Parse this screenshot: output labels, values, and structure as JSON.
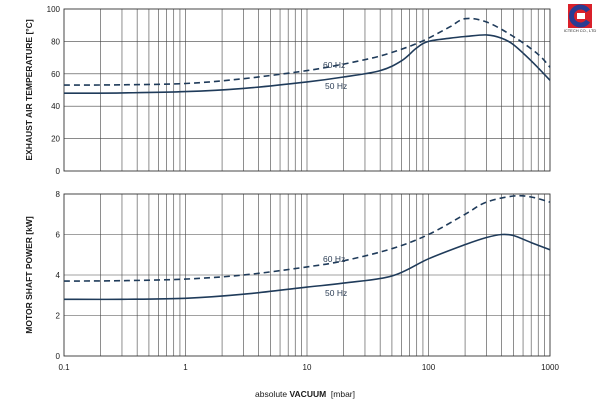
{
  "company": {
    "logo_text": "ICTECH CO., LTD",
    "colors": {
      "red": "#d9202a",
      "blue": "#2a3c92"
    }
  },
  "colors": {
    "line": "#1f3b5a",
    "grid": "#444444"
  },
  "chart_data": [
    {
      "type": "line",
      "id": "temperature",
      "title": "",
      "xlabel": "",
      "ylabel": "EXHAUST AIR TEMPERATURE [°C]",
      "x_scale": "log",
      "xlim": [
        0.1,
        1000
      ],
      "ylim": [
        0,
        100
      ],
      "yticks": [
        "0",
        "20",
        "40",
        "60",
        "80",
        "100"
      ],
      "xtick_labels": [],
      "grid": true,
      "series": [
        {
          "name": "60 Hz",
          "style": "dashed",
          "x": [
            0.1,
            0.3,
            1,
            3,
            10,
            20,
            40,
            70,
            100,
            150,
            200,
            300,
            500,
            800,
            1000
          ],
          "y": [
            53,
            53.2,
            54,
            57,
            62,
            66,
            71,
            77,
            82,
            89,
            94,
            92,
            83,
            72,
            64
          ]
        },
        {
          "name": "50 Hz",
          "style": "solid",
          "x": [
            0.1,
            0.3,
            1,
            3,
            10,
            20,
            40,
            60,
            80,
            100,
            150,
            200,
            300,
            400,
            500,
            700,
            1000
          ],
          "y": [
            48,
            48.2,
            49,
            51,
            55,
            58,
            62,
            68,
            76,
            80,
            82,
            83,
            84,
            82,
            78,
            68,
            56
          ]
        }
      ]
    },
    {
      "type": "line",
      "id": "power",
      "title": "",
      "xlabel": "absolute VACUUM [mbar]",
      "xlabel_parts": {
        "prefix": "absolute ",
        "bold": "VACUUM",
        "suffix": "  [mbar]"
      },
      "ylabel": "MOTOR SHAFT POWER [kW]",
      "x_scale": "log",
      "xlim": [
        0.1,
        1000
      ],
      "ylim": [
        0,
        8
      ],
      "yticks": [
        "0",
        "2",
        "4",
        "6",
        "8"
      ],
      "xtick_labels": [
        "0.1",
        "1",
        "10",
        "100",
        "1000"
      ],
      "grid": true,
      "series": [
        {
          "name": "60 Hz",
          "style": "dashed",
          "x": [
            0.1,
            0.3,
            1,
            3,
            10,
            20,
            50,
            100,
            200,
            300,
            500,
            700,
            1000
          ],
          "y": [
            3.7,
            3.72,
            3.8,
            4.0,
            4.4,
            4.7,
            5.3,
            6.0,
            7.0,
            7.6,
            7.9,
            7.85,
            7.6
          ]
        },
        {
          "name": "50 Hz",
          "style": "solid",
          "x": [
            0.1,
            0.3,
            1,
            3,
            10,
            20,
            50,
            100,
            200,
            300,
            400,
            500,
            700,
            1000
          ],
          "y": [
            2.8,
            2.8,
            2.85,
            3.05,
            3.4,
            3.6,
            3.95,
            4.8,
            5.5,
            5.85,
            6.0,
            5.95,
            5.6,
            5.25
          ]
        }
      ]
    }
  ]
}
